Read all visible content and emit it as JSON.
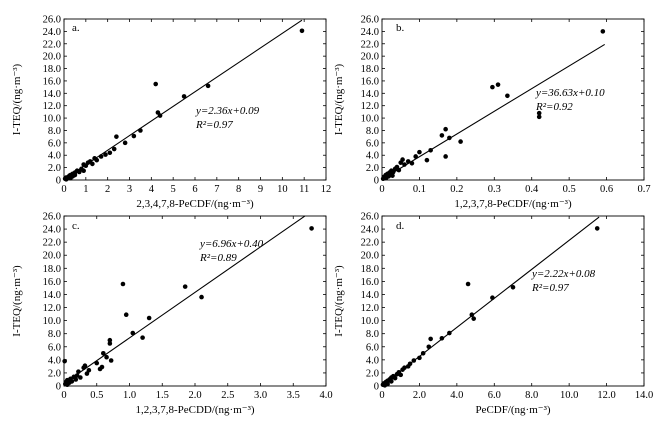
{
  "chart_data": [
    {
      "type": "scatter",
      "panel_label": "a.",
      "xlabel": "2,3,4,7,8-PeCDF/(ng·m⁻³)",
      "ylabel": "I-TEQ/(ng·m⁻³)",
      "xlim": [
        0,
        12
      ],
      "ylim": [
        0,
        26
      ],
      "xticks": [
        "0",
        "1",
        "2",
        "3",
        "4",
        "5",
        "6",
        "7",
        "8",
        "9",
        "10",
        "11",
        "12"
      ],
      "yticks": [
        "0",
        "2.0",
        "4.0",
        "6.0",
        "8.0",
        "10.0",
        "12.0",
        "14.0",
        "16.0",
        "18.0",
        "20.0",
        "22.0",
        "24.0",
        "26.0"
      ],
      "equation": "y=2.36x+0.09",
      "r2": "R²=0.97",
      "fit": {
        "slope": 2.36,
        "intercept": 0.09,
        "x_range": [
          0,
          10.9
        ]
      },
      "points": [
        [
          0.05,
          0.2
        ],
        [
          0.1,
          0.1
        ],
        [
          0.1,
          0.4
        ],
        [
          0.15,
          0.3
        ],
        [
          0.2,
          0.5
        ],
        [
          0.25,
          0.7
        ],
        [
          0.3,
          0.3
        ],
        [
          0.3,
          0.8
        ],
        [
          0.4,
          0.6
        ],
        [
          0.4,
          1.0
        ],
        [
          0.5,
          1.2
        ],
        [
          0.5,
          0.8
        ],
        [
          0.6,
          1.5
        ],
        [
          0.7,
          1.3
        ],
        [
          0.8,
          1.8
        ],
        [
          0.9,
          1.5
        ],
        [
          0.9,
          2.5
        ],
        [
          1.0,
          2.3
        ],
        [
          1.1,
          2.8
        ],
        [
          1.2,
          3.0
        ],
        [
          1.3,
          2.6
        ],
        [
          1.4,
          3.5
        ],
        [
          1.5,
          3.2
        ],
        [
          1.7,
          3.8
        ],
        [
          1.9,
          4.1
        ],
        [
          2.1,
          4.4
        ],
        [
          2.3,
          5.0
        ],
        [
          2.4,
          7.0
        ],
        [
          2.8,
          6.0
        ],
        [
          3.2,
          7.1
        ],
        [
          3.5,
          8.0
        ],
        [
          4.2,
          15.5
        ],
        [
          4.3,
          10.9
        ],
        [
          4.4,
          10.4
        ],
        [
          5.5,
          13.5
        ],
        [
          6.6,
          15.2
        ],
        [
          10.9,
          24.1
        ]
      ]
    },
    {
      "type": "scatter",
      "panel_label": "b.",
      "xlabel": "1,2,3,7,8-PeCDF/(ng·m⁻³)",
      "ylabel": "I-TEQ/(ng·m⁻³)",
      "xlim": [
        0,
        0.7
      ],
      "ylim": [
        0,
        26
      ],
      "xticks": [
        "0",
        "0.1",
        "0.2",
        "0.3",
        "0.4",
        "0.5",
        "0.6",
        "0.7"
      ],
      "yticks": [
        "0",
        "2.0",
        "4.0",
        "6.0",
        "8.0",
        "10.0",
        "12.0",
        "14.0",
        "16.0",
        "18.0",
        "20.0",
        "22.0",
        "24.0",
        "26.0"
      ],
      "equation": "y=36.63x+0.10",
      "r2": "R²=0.92",
      "fit": {
        "slope": 36.63,
        "intercept": 0.1,
        "x_range": [
          0,
          0.595
        ]
      },
      "points": [
        [
          0.003,
          0.2
        ],
        [
          0.005,
          0.5
        ],
        [
          0.008,
          0.3
        ],
        [
          0.01,
          0.8
        ],
        [
          0.012,
          0.4
        ],
        [
          0.015,
          1.0
        ],
        [
          0.018,
          0.6
        ],
        [
          0.02,
          1.2
        ],
        [
          0.022,
          0.9
        ],
        [
          0.025,
          1.5
        ],
        [
          0.028,
          0.7
        ],
        [
          0.03,
          1.3
        ],
        [
          0.035,
          1.8
        ],
        [
          0.04,
          2.1
        ],
        [
          0.045,
          1.6
        ],
        [
          0.05,
          2.8
        ],
        [
          0.055,
          3.3
        ],
        [
          0.06,
          2.5
        ],
        [
          0.07,
          3.0
        ],
        [
          0.08,
          2.7
        ],
        [
          0.09,
          3.8
        ],
        [
          0.1,
          4.5
        ],
        [
          0.12,
          3.2
        ],
        [
          0.13,
          4.8
        ],
        [
          0.16,
          7.2
        ],
        [
          0.17,
          3.8
        ],
        [
          0.17,
          8.2
        ],
        [
          0.18,
          6.8
        ],
        [
          0.21,
          6.2
        ],
        [
          0.295,
          15.0
        ],
        [
          0.31,
          15.4
        ],
        [
          0.335,
          13.6
        ],
        [
          0.42,
          10.8
        ],
        [
          0.42,
          10.2
        ],
        [
          0.59,
          24.0
        ]
      ]
    },
    {
      "type": "scatter",
      "panel_label": "c.",
      "xlabel": "1,2,3,7,8-PeCDD/(ng·m⁻³)",
      "ylabel": "I-TEQ/(ng·m⁻³)",
      "xlim": [
        0,
        4.0
      ],
      "ylim": [
        0,
        26
      ],
      "xticks": [
        "0",
        "0.5",
        "1.0",
        "1.5",
        "2.0",
        "2.5",
        "3.0",
        "3.5",
        "4.0"
      ],
      "yticks": [
        "0",
        "2.0",
        "4.0",
        "6.0",
        "8.0",
        "10.0",
        "12.0",
        "14.0",
        "16.0",
        "18.0",
        "20.0",
        "22.0",
        "24.0",
        "26.0"
      ],
      "equation": "y=6.96x+0.40",
      "r2": "R²=0.89",
      "fit": {
        "slope": 6.96,
        "intercept": 0.4,
        "x_range": [
          0,
          3.68
        ]
      },
      "points": [
        [
          0.01,
          3.8
        ],
        [
          0.02,
          0.3
        ],
        [
          0.03,
          0.6
        ],
        [
          0.05,
          0.2
        ],
        [
          0.05,
          0.9
        ],
        [
          0.08,
          0.5
        ],
        [
          0.1,
          1.1
        ],
        [
          0.12,
          0.7
        ],
        [
          0.15,
          1.4
        ],
        [
          0.18,
          1.0
        ],
        [
          0.2,
          1.6
        ],
        [
          0.22,
          2.2
        ],
        [
          0.25,
          1.3
        ],
        [
          0.3,
          2.8
        ],
        [
          0.32,
          3.1
        ],
        [
          0.35,
          1.9
        ],
        [
          0.38,
          2.4
        ],
        [
          0.5,
          3.5
        ],
        [
          0.55,
          2.6
        ],
        [
          0.58,
          2.9
        ],
        [
          0.6,
          5.0
        ],
        [
          0.65,
          4.4
        ],
        [
          0.7,
          7.0
        ],
        [
          0.7,
          6.5
        ],
        [
          0.72,
          3.9
        ],
        [
          0.9,
          15.6
        ],
        [
          0.95,
          10.9
        ],
        [
          1.05,
          8.1
        ],
        [
          1.2,
          7.4
        ],
        [
          1.3,
          10.4
        ],
        [
          1.85,
          15.2
        ],
        [
          2.1,
          13.6
        ],
        [
          3.78,
          24.1
        ]
      ]
    },
    {
      "type": "scatter",
      "panel_label": "d.",
      "xlabel": "PeCDF/(ng·m⁻³)",
      "ylabel": "I-TEQ/(ng·m⁻³)",
      "xlim": [
        0,
        14.0
      ],
      "ylim": [
        0,
        26
      ],
      "xticks": [
        "0",
        "2.0",
        "4.0",
        "6.0",
        "8.0",
        "10.0",
        "12.0",
        "14.0"
      ],
      "yticks": [
        "0",
        "2.0",
        "4.0",
        "6.0",
        "8.0",
        "10.0",
        "12.0",
        "14.0",
        "16.0",
        "18.0",
        "20.0",
        "22.0",
        "24.0",
        "26.0"
      ],
      "equation": "y=2.22x+0.08",
      "r2": "R²=0.97",
      "fit": {
        "slope": 2.22,
        "intercept": 0.08,
        "x_range": [
          0,
          11.6
        ]
      },
      "points": [
        [
          0.05,
          0.2
        ],
        [
          0.1,
          0.4
        ],
        [
          0.15,
          0.1
        ],
        [
          0.2,
          0.6
        ],
        [
          0.3,
          0.3
        ],
        [
          0.3,
          0.8
        ],
        [
          0.4,
          1.0
        ],
        [
          0.5,
          0.7
        ],
        [
          0.5,
          1.3
        ],
        [
          0.6,
          1.5
        ],
        [
          0.7,
          1.2
        ],
        [
          0.8,
          1.8
        ],
        [
          0.9,
          2.1
        ],
        [
          1.0,
          1.7
        ],
        [
          1.1,
          2.5
        ],
        [
          1.2,
          2.8
        ],
        [
          1.4,
          3.0
        ],
        [
          1.5,
          3.4
        ],
        [
          1.7,
          3.9
        ],
        [
          2.0,
          4.3
        ],
        [
          2.2,
          5.0
        ],
        [
          2.5,
          6.0
        ],
        [
          2.6,
          7.2
        ],
        [
          3.2,
          7.3
        ],
        [
          3.6,
          8.1
        ],
        [
          4.6,
          15.6
        ],
        [
          4.8,
          10.9
        ],
        [
          4.9,
          10.3
        ],
        [
          5.9,
          13.5
        ],
        [
          7.0,
          15.1
        ],
        [
          11.5,
          24.1
        ]
      ]
    }
  ]
}
